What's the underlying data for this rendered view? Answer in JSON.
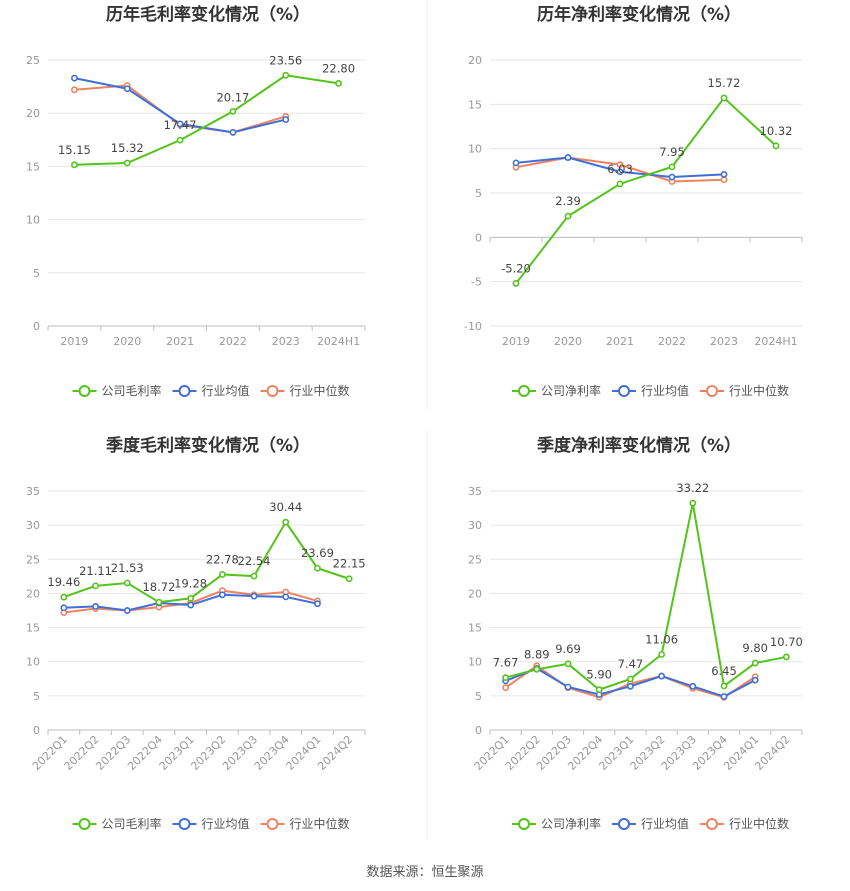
{
  "colors": {
    "company": "#52c41a",
    "mean": "#3f6fd8",
    "median": "#f0835f",
    "grid": "#e6e6e6",
    "axis": "#bfbfbf"
  },
  "legend": {
    "gross": "公司毛利率",
    "net": "公司净利率",
    "mean": "行业均值",
    "median": "行业中位数"
  },
  "source": "数据来源：恒生聚源",
  "chart_data": [
    {
      "type": "line",
      "title": "历年毛利率变化情况（%）",
      "categories": [
        "2019",
        "2020",
        "2021",
        "2022",
        "2023",
        "2024H1"
      ],
      "ylim": [
        0,
        25
      ],
      "yticks": [
        0,
        5,
        10,
        15,
        20,
        25
      ],
      "series": [
        {
          "name": "公司毛利率",
          "key": "company",
          "values": [
            15.15,
            15.32,
            17.47,
            20.17,
            23.56,
            22.8
          ],
          "labels": [
            "15.15",
            "15.32",
            "17.47",
            "20.17",
            "23.56",
            "22.80"
          ]
        },
        {
          "name": "行业均值",
          "key": "mean",
          "values": [
            23.3,
            22.3,
            19.0,
            18.2,
            19.4,
            null
          ]
        },
        {
          "name": "行业中位数",
          "key": "median",
          "values": [
            22.2,
            22.6,
            18.9,
            18.2,
            19.7,
            null
          ]
        }
      ]
    },
    {
      "type": "line",
      "title": "历年净利率变化情况（%）",
      "categories": [
        "2019",
        "2020",
        "2021",
        "2022",
        "2023",
        "2024H1"
      ],
      "ylim": [
        -10,
        20
      ],
      "yticks": [
        -10,
        -5,
        0,
        5,
        10,
        15,
        20
      ],
      "series": [
        {
          "name": "公司净利率",
          "key": "company",
          "values": [
            -5.2,
            2.39,
            6.03,
            7.95,
            15.72,
            10.32
          ],
          "labels": [
            "-5.20",
            "2.39",
            "6.03",
            "7.95",
            "15.72",
            "10.32"
          ]
        },
        {
          "name": "行业均值",
          "key": "mean",
          "values": [
            8.4,
            9.0,
            7.4,
            6.8,
            7.1,
            null
          ]
        },
        {
          "name": "行业中位数",
          "key": "median",
          "values": [
            7.9,
            9.0,
            8.2,
            6.3,
            6.5,
            null
          ]
        }
      ]
    },
    {
      "type": "line",
      "title": "季度毛利率变化情况（%）",
      "categories": [
        "2022Q1",
        "2022Q2",
        "2022Q3",
        "2022Q4",
        "2023Q1",
        "2023Q2",
        "2023Q3",
        "2023Q4",
        "2024Q1",
        "2024Q2"
      ],
      "ylim": [
        0,
        35
      ],
      "yticks": [
        0,
        5,
        10,
        15,
        20,
        25,
        30,
        35
      ],
      "series": [
        {
          "name": "公司毛利率",
          "key": "company",
          "values": [
            19.46,
            21.11,
            21.53,
            18.72,
            19.28,
            22.78,
            22.54,
            30.44,
            23.69,
            22.15
          ],
          "labels": [
            "19.46",
            "21.11",
            "21.53",
            "18.72",
            "19.28",
            "22.78",
            "22.54",
            "30.44",
            "23.69",
            "22.15"
          ]
        },
        {
          "name": "行业均值",
          "key": "mean",
          "values": [
            17.9,
            18.1,
            17.5,
            18.6,
            18.3,
            19.8,
            19.6,
            19.5,
            18.5,
            null
          ]
        },
        {
          "name": "行业中位数",
          "key": "median",
          "values": [
            17.2,
            17.8,
            17.5,
            18.0,
            18.6,
            20.4,
            19.8,
            20.2,
            18.9,
            null
          ]
        }
      ]
    },
    {
      "type": "line",
      "title": "季度净利率变化情况（%）",
      "categories": [
        "2022Q1",
        "2022Q2",
        "2022Q3",
        "2022Q4",
        "2023Q1",
        "2023Q2",
        "2023Q3",
        "2023Q4",
        "2024Q1",
        "2024Q2"
      ],
      "ylim": [
        0,
        35
      ],
      "yticks": [
        0,
        5,
        10,
        15,
        20,
        25,
        30,
        35
      ],
      "series": [
        {
          "name": "公司净利率",
          "key": "company",
          "values": [
            7.67,
            8.89,
            9.69,
            5.9,
            7.47,
            11.06,
            33.22,
            6.45,
            9.8,
            10.7
          ],
          "labels": [
            "7.67",
            "8.89",
            "9.69",
            "5.90",
            "7.47",
            "11.06",
            "33.22",
            "6.45",
            "9.80",
            "10.70"
          ]
        },
        {
          "name": "行业均值",
          "key": "mean",
          "values": [
            7.2,
            9.0,
            6.3,
            5.2,
            6.4,
            7.9,
            6.4,
            4.9,
            7.3,
            null
          ]
        },
        {
          "name": "行业中位数",
          "key": "median",
          "values": [
            6.2,
            9.4,
            6.2,
            4.8,
            6.8,
            7.9,
            6.1,
            4.8,
            7.8,
            null
          ]
        }
      ]
    }
  ]
}
